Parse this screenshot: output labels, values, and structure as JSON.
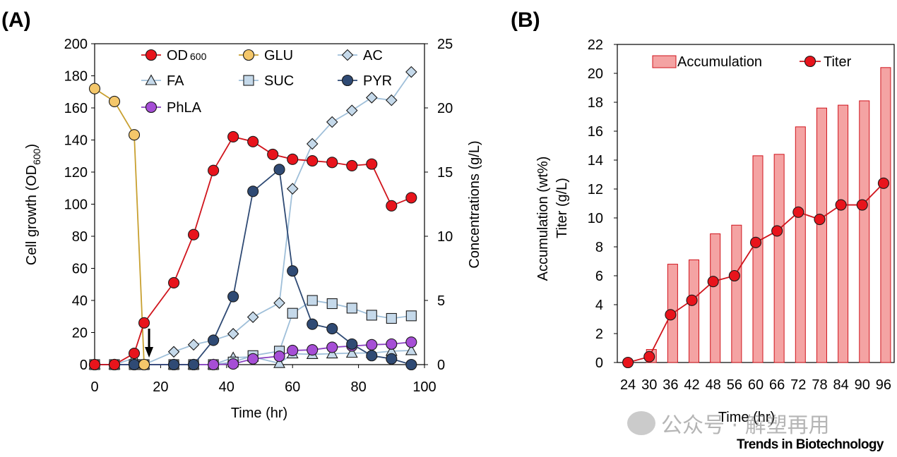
{
  "panels": {
    "a": {
      "label": "(A)"
    },
    "b": {
      "label": "(B)"
    }
  },
  "watermark": {
    "text": "公众号 · 解塑再用"
  },
  "credit": {
    "text": "Trends in Biotechnology"
  },
  "chart_data": [
    {
      "type": "line",
      "panel": "(A)",
      "xlabel": "Time (hr)",
      "ylabel_left": "Cell growth (OD600)",
      "ylabel_right": "Concentrations (g/L)",
      "xlim": [
        0,
        100
      ],
      "xticks": [
        0,
        20,
        40,
        60,
        80,
        100
      ],
      "ylim_left": [
        0,
        200
      ],
      "yticks_left": [
        0,
        20,
        40,
        60,
        80,
        100,
        120,
        140,
        160,
        180,
        200
      ],
      "ylim_right": [
        0,
        25
      ],
      "yticks_right": [
        0,
        5,
        10,
        15,
        20,
        25
      ],
      "annotation": "downward arrow at ~16 hr",
      "series": [
        {
          "name": "OD600",
          "legend": "OD",
          "legend_sub": "600",
          "axis": "left",
          "marker": "circle",
          "color": "#e8141c",
          "line": "#d0141c",
          "x": [
            0,
            6,
            12,
            15,
            24,
            30,
            36,
            42,
            48,
            54,
            60,
            66,
            72,
            78,
            84,
            90,
            96
          ],
          "y": [
            0,
            0,
            7,
            26,
            51,
            81,
            121,
            142,
            139,
            131,
            128,
            127,
            126,
            124,
            125,
            99,
            104
          ]
        },
        {
          "name": "GLU",
          "legend": "GLU",
          "axis": "right",
          "marker": "circle",
          "color": "#f4c76a",
          "line": "#c8a030",
          "x": [
            0,
            6,
            12,
            15
          ],
          "y": [
            21.5,
            20.5,
            17.9,
            0
          ]
        },
        {
          "name": "AC",
          "legend": "AC",
          "axis": "right",
          "marker": "diamond",
          "color": "#c5d9ea",
          "line": "#9fbfd9",
          "x": [
            0,
            6,
            12,
            15,
            24,
            30,
            36,
            42,
            48,
            56,
            60,
            66,
            72,
            78,
            84,
            90,
            96
          ],
          "y": [
            0,
            0,
            0,
            0,
            1.0,
            1.55,
            1.9,
            2.4,
            3.7,
            4.8,
            13.7,
            17.2,
            18.9,
            19.8,
            20.8,
            20.6,
            22.8
          ]
        },
        {
          "name": "FA",
          "legend": "FA",
          "axis": "right",
          "marker": "triangle",
          "color": "#c5d9ea",
          "line": "#9fbfd9",
          "x": [
            0,
            6,
            12,
            15,
            24,
            30,
            36,
            42,
            48,
            56,
            60,
            66,
            72,
            78,
            84,
            90,
            96
          ],
          "y": [
            0,
            0,
            0.5,
            0,
            0,
            0,
            0,
            0.55,
            0.6,
            0.1,
            0.85,
            0.8,
            0.85,
            0.9,
            0.9,
            1.05,
            1.1
          ]
        },
        {
          "name": "SUC",
          "legend": "SUC",
          "axis": "right",
          "marker": "square",
          "color": "#c5d9ea",
          "line": "#9fbfd9",
          "x": [
            0,
            6,
            12,
            15,
            24,
            30,
            36,
            42,
            48,
            56,
            60,
            66,
            72,
            78,
            84,
            90,
            96
          ],
          "y": [
            0,
            0,
            0,
            0,
            0,
            0,
            0,
            0.2,
            0.7,
            1.05,
            4.0,
            5.0,
            4.75,
            4.4,
            3.85,
            3.6,
            3.8
          ]
        },
        {
          "name": "PYR",
          "legend": "PYR",
          "axis": "right",
          "marker": "circle",
          "color": "#2f4a74",
          "line": "#2f4a74",
          "x": [
            0,
            6,
            12,
            15,
            24,
            30,
            36,
            42,
            48,
            56,
            60,
            66,
            72,
            78,
            84,
            90,
            96
          ],
          "y": [
            0,
            0,
            0,
            0,
            0,
            0,
            1.9,
            5.3,
            13.5,
            15.2,
            7.3,
            3.15,
            2.8,
            1.6,
            0.7,
            0.45,
            0
          ]
        },
        {
          "name": "PhLA",
          "legend": "PhLA",
          "axis": "right",
          "marker": "circle",
          "color": "#a64ed6",
          "line": "#8a40c0",
          "x": [
            0,
            6,
            12,
            15,
            24,
            30,
            36,
            42,
            48,
            56,
            60,
            66,
            72,
            78,
            84,
            90,
            96
          ],
          "y": [
            0,
            0,
            0,
            0,
            0,
            0,
            0,
            0.05,
            0.45,
            0.65,
            1.1,
            1.15,
            1.35,
            1.45,
            1.55,
            1.6,
            1.75
          ]
        }
      ]
    },
    {
      "type": "bar",
      "panel": "(B)",
      "xlabel": "Time (hr)",
      "ylabel": "Accumulation (wt%)",
      "ylabel2": "Titer (g/L)",
      "ylim": [
        0,
        22
      ],
      "yticks": [
        0,
        2,
        4,
        6,
        8,
        10,
        12,
        14,
        16,
        18,
        20,
        22
      ],
      "categories": [
        "24",
        "30",
        "36",
        "42",
        "48",
        "56",
        "60",
        "66",
        "72",
        "78",
        "84",
        "90",
        "96"
      ],
      "series": [
        {
          "name": "Accumulation",
          "type": "bar",
          "color": "#f4a3a3",
          "edge": "#d0141c",
          "values": [
            0,
            0.9,
            6.8,
            7.1,
            8.9,
            9.5,
            14.3,
            14.4,
            16.3,
            17.6,
            17.8,
            18.1,
            20.4
          ]
        },
        {
          "name": "Titer",
          "type": "line",
          "color": "#e8141c",
          "line": "#d0141c",
          "values": [
            0,
            0.4,
            3.3,
            4.3,
            5.6,
            6.0,
            8.3,
            9.1,
            10.4,
            9.9,
            10.9,
            10.9,
            12.4
          ]
        }
      ]
    }
  ]
}
